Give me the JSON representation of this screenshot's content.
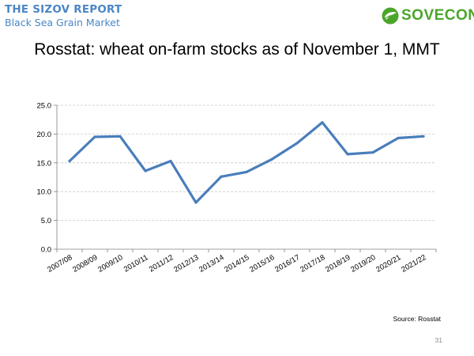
{
  "header": {
    "report_title": "THE SIZOV REPORT",
    "report_subtitle": "Black Sea Grain Market",
    "logo_text": "SOVECON",
    "logo_icon": "sovecon-leaf-icon"
  },
  "colors": {
    "header_text": "#4a86c5",
    "logo_green": "#4aa62a",
    "series_line": "#4a7ebb",
    "grid": "#c8c8c8"
  },
  "chart_data": {
    "type": "line",
    "title": "Rosstat: wheat on-farm stocks as of November 1, MMT",
    "xlabel": "",
    "ylabel": "",
    "ylim": [
      0,
      25
    ],
    "yticks": [
      "0.0",
      "5.0",
      "10.0",
      "15.0",
      "20.0",
      "25.0"
    ],
    "grid": "horizontal dashed",
    "legend": "none",
    "categories": [
      "2007/08",
      "2008/09",
      "2009/10",
      "2010/11",
      "2011/12",
      "2012/13",
      "2013/14",
      "2014/15",
      "2015/16",
      "2016/17",
      "2017/18",
      "2018/19",
      "2019/20",
      "2020/21",
      "2021/22"
    ],
    "series": [
      {
        "values": [
          15.3,
          19.5,
          19.6,
          13.6,
          15.3,
          8.1,
          12.6,
          13.4,
          15.6,
          18.4,
          22.0,
          16.5,
          16.8,
          19.3,
          19.6
        ]
      }
    ]
  },
  "footer": {
    "source": "Source: Rosstat",
    "page_number": "31"
  }
}
